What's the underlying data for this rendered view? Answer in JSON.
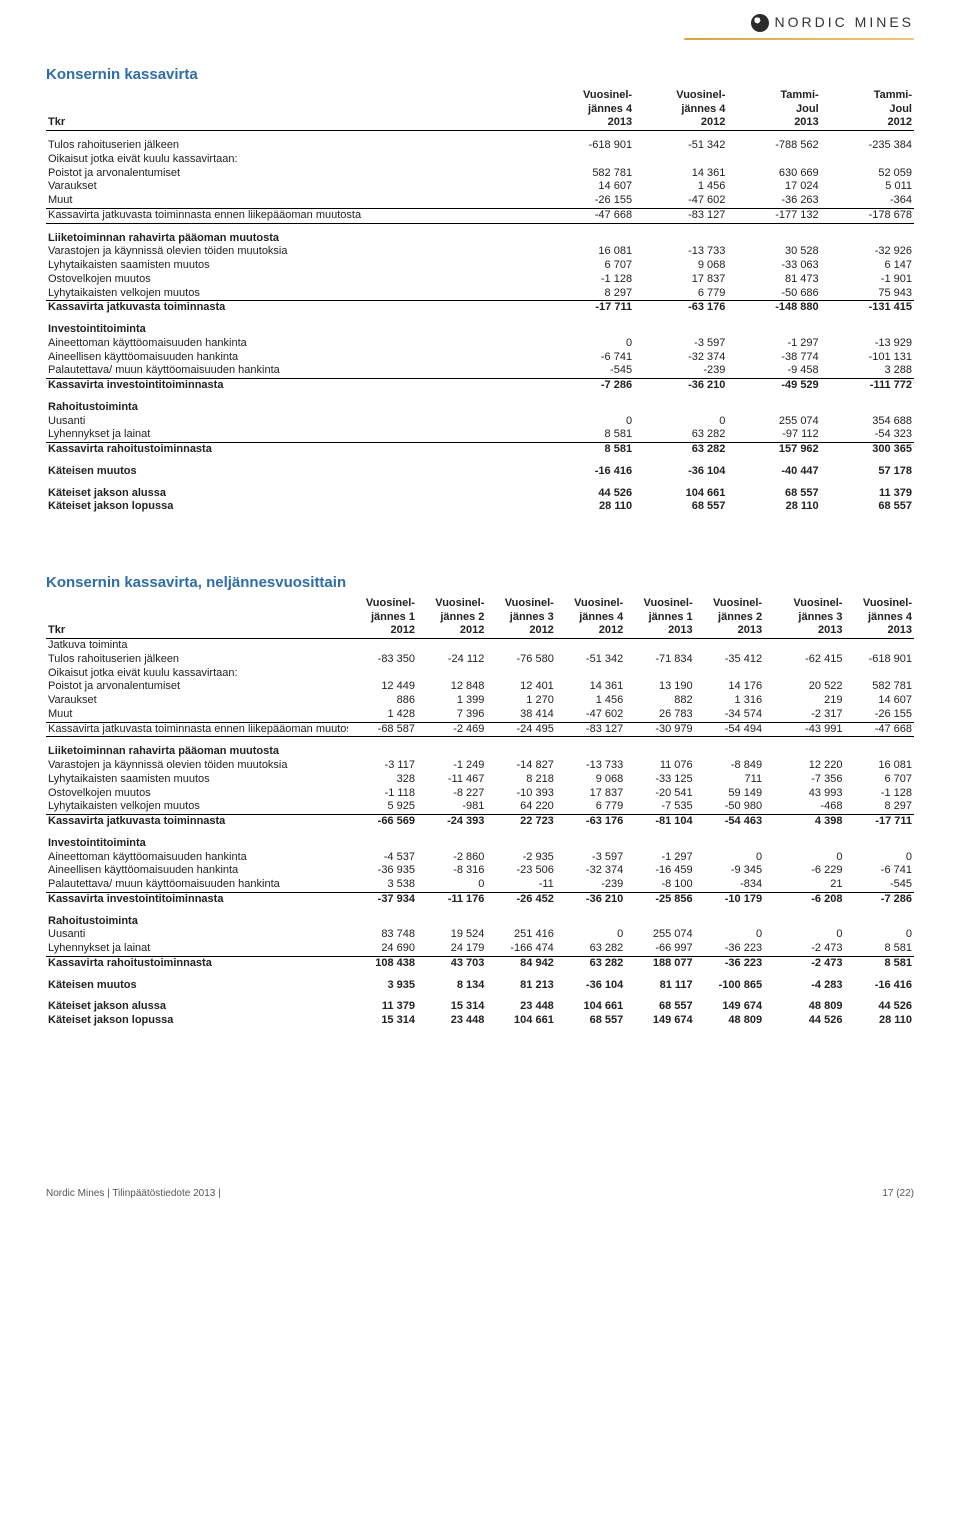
{
  "logo_text": "NORDIC MINES",
  "footer_left": "Nordic Mines | Tilinpäätöstiedote 2013 |",
  "footer_right": "17 (22)",
  "t1": {
    "title": "Konsernin kassavirta",
    "head": {
      "r0": [
        "",
        "Vuosinel-",
        "Vuosinel-",
        "Tammi-",
        "Tammi-"
      ],
      "r1": [
        "",
        "jännes 4",
        "jännes 4",
        "Joul",
        "Joul"
      ],
      "r2": [
        "Tkr",
        "2013",
        "2012",
        "2013",
        "2012"
      ]
    },
    "rows": [
      {
        "l": "Tulos rahoituserien jälkeen",
        "v": [
          "-618 901",
          "-51 342",
          "-788 562",
          "-235 384"
        ]
      },
      {
        "l": "Oikaisut jotka eivät kuulu kassavirtaan:",
        "v": [
          "",
          "",
          "",
          ""
        ]
      },
      {
        "l": "Poistot ja arvonalentumiset",
        "v": [
          "582 781",
          "14 361",
          "630 669",
          "52 059"
        ]
      },
      {
        "l": "Varaukset",
        "v": [
          "14 607",
          "1 456",
          "17 024",
          "5 011"
        ]
      },
      {
        "l": "Muut",
        "v": [
          "-26 155",
          "-47 602",
          "-36 263",
          "-364"
        ]
      }
    ],
    "cfo_before": {
      "l": "Kassavirta jatkuvasta toiminnasta ennen liikepääoman muutosta",
      "v": [
        "-47 668",
        "-83 127",
        "-177 132",
        "-178 678"
      ]
    },
    "sect1": "Liiketoiminnan rahavirta pääoman muutosta",
    "wc": [
      {
        "l": "Varastojen ja käynnissä olevien töiden muutoksia",
        "v": [
          "16 081",
          "-13 733",
          "30 528",
          "-32 926"
        ]
      },
      {
        "l": "Lyhytaikaisten saamisten muutos",
        "v": [
          "6 707",
          "9 068",
          "-33 063",
          "6 147"
        ]
      },
      {
        "l": "Ostovelkojen muutos",
        "v": [
          "-1 128",
          "17 837",
          "81 473",
          "-1 901"
        ]
      },
      {
        "l": "Lyhytaikaisten velkojen muutos",
        "v": [
          "8 297",
          "6 779",
          "-50 686",
          "75 943"
        ]
      }
    ],
    "cfo": {
      "l": "Kassavirta jatkuvasta toiminnasta",
      "v": [
        "-17 711",
        "-63 176",
        "-148 880",
        "-131 415"
      ]
    },
    "sect2": "Investointitoiminta",
    "inv": [
      {
        "l": "Aineettoman käyttöomaisuuden hankinta",
        "v": [
          "0",
          "-3 597",
          "-1 297",
          "-13 929"
        ]
      },
      {
        "l": "Aineellisen käyttöomaisuuden hankinta",
        "v": [
          "-6 741",
          "-32 374",
          "-38 774",
          "-101 131"
        ]
      },
      {
        "l": "Palautettava/ muun käyttöomaisuuden hankinta",
        "v": [
          "-545",
          "-239",
          "-9 458",
          "3 288"
        ]
      }
    ],
    "cfi": {
      "l": "Kassavirta investointitoiminnasta",
      "v": [
        "-7 286",
        "-36 210",
        "-49 529",
        "-111 772"
      ]
    },
    "sect3": "Rahoitustoiminta",
    "fin": [
      {
        "l": "Uusanti",
        "v": [
          "0",
          "0",
          "255 074",
          "354 688"
        ]
      },
      {
        "l": "Lyhennykset ja lainat",
        "v": [
          "8 581",
          "63 282",
          "-97 112",
          "-54 323"
        ]
      }
    ],
    "cff": {
      "l": "Kassavirta rahoitustoiminnasta",
      "v": [
        "8 581",
        "63 282",
        "157 962",
        "300 365"
      ]
    },
    "chg": {
      "l": "Käteisen muutos",
      "v": [
        "-16 416",
        "-36 104",
        "-40 447",
        "57 178"
      ]
    },
    "beg": {
      "l": "Käteiset jakson alussa",
      "v": [
        "44 526",
        "104 661",
        "68 557",
        "11 379"
      ]
    },
    "end": {
      "l": "Käteiset jakson lopussa",
      "v": [
        "28 110",
        "68 557",
        "28 110",
        "68 557"
      ]
    }
  },
  "t2": {
    "title": "Konsernin kassavirta, neljännesvuosittain",
    "head": {
      "r0": [
        "",
        "Vuosinel-",
        "Vuosinel-",
        "Vuosinel-",
        "Vuosinel-",
        "Vuosinel-",
        "Vuosinel-",
        "Vuosinel-",
        "Vuosinel-"
      ],
      "r1": [
        "",
        "jännes 1",
        "jännes 2",
        "jännes 3",
        "jännes 4",
        "jännes 1",
        "jännes 2",
        "jännes 3",
        "jännes 4"
      ],
      "r2": [
        "Tkr",
        "2012",
        "2012",
        "2012",
        "2012",
        "2013",
        "2013",
        "2013",
        "2013"
      ]
    },
    "cont": "Jatkuva toiminta",
    "rows": [
      {
        "l": "Tulos rahoituserien jälkeen",
        "v": [
          "-83 350",
          "-24 112",
          "-76 580",
          "-51 342",
          "-71 834",
          "-35 412",
          "-62 415",
          "-618 901"
        ]
      },
      {
        "l": "Oikaisut jotka eivät kuulu kassavirtaan:",
        "v": [
          "",
          "",
          "",
          "",
          "",
          "",
          "",
          ""
        ]
      },
      {
        "l": "Poistot ja arvonalentumiset",
        "v": [
          "12 449",
          "12 848",
          "12 401",
          "14 361",
          "13 190",
          "14 176",
          "20 522",
          "582 781"
        ]
      },
      {
        "l": "Varaukset",
        "v": [
          "886",
          "1 399",
          "1 270",
          "1 456",
          "882",
          "1 316",
          "219",
          "14 607"
        ]
      },
      {
        "l": "Muut",
        "v": [
          "1 428",
          "7 396",
          "38 414",
          "-47 602",
          "26 783",
          "-34 574",
          "-2 317",
          "-26 155"
        ]
      }
    ],
    "cfo_before": {
      "l": "Kassavirta jatkuvasta toiminnasta ennen liikepääoman muutosta",
      "v": [
        "-68 587",
        "-2 469",
        "-24 495",
        "-83 127",
        "-30 979",
        "-54 494",
        "-43 991",
        "-47 668"
      ]
    },
    "sect1": "Liiketoiminnan rahavirta pääoman muutosta",
    "wc": [
      {
        "l": "Varastojen ja käynnissä olevien töiden muutoksia",
        "v": [
          "-3 117",
          "-1 249",
          "-14 827",
          "-13 733",
          "11 076",
          "-8 849",
          "12 220",
          "16 081"
        ]
      },
      {
        "l": "Lyhytaikaisten saamisten muutos",
        "v": [
          "328",
          "-11 467",
          "8 218",
          "9 068",
          "-33 125",
          "711",
          "-7 356",
          "6 707"
        ]
      },
      {
        "l": "Ostovelkojen muutos",
        "v": [
          "-1 118",
          "-8 227",
          "-10 393",
          "17 837",
          "-20 541",
          "59 149",
          "43 993",
          "-1 128"
        ]
      },
      {
        "l": "Lyhytaikaisten velkojen muutos",
        "v": [
          "5 925",
          "-981",
          "64 220",
          "6 779",
          "-7 535",
          "-50 980",
          "-468",
          "8 297"
        ]
      }
    ],
    "cfo": {
      "l": "Kassavirta jatkuvasta toiminnasta",
      "v": [
        "-66 569",
        "-24 393",
        "22 723",
        "-63 176",
        "-81 104",
        "-54 463",
        "4 398",
        "-17 711"
      ]
    },
    "sect2": "Investointitoiminta",
    "inv": [
      {
        "l": "Aineettoman käyttöomaisuuden hankinta",
        "v": [
          "-4 537",
          "-2 860",
          "-2 935",
          "-3 597",
          "-1 297",
          "0",
          "0",
          "0"
        ]
      },
      {
        "l": "Aineellisen käyttöomaisuuden hankinta",
        "v": [
          "-36 935",
          "-8 316",
          "-23 506",
          "-32 374",
          "-16 459",
          "-9 345",
          "-6 229",
          "-6 741"
        ]
      },
      {
        "l": "Palautettava/ muun käyttöomaisuuden hankinta",
        "v": [
          "3 538",
          "0",
          "-11",
          "-239",
          "-8 100",
          "-834",
          "21",
          "-545"
        ]
      }
    ],
    "cfi": {
      "l": "Kassavirta investointitoiminnasta",
      "v": [
        "-37 934",
        "-11 176",
        "-26 452",
        "-36 210",
        "-25 856",
        "-10 179",
        "-6 208",
        "-7 286"
      ]
    },
    "sect3": "Rahoitustoiminta",
    "fin": [
      {
        "l": "Uusanti",
        "v": [
          "83 748",
          "19 524",
          "251 416",
          "0",
          "255 074",
          "0",
          "0",
          "0"
        ]
      },
      {
        "l": "Lyhennykset ja lainat",
        "v": [
          "24 690",
          "24 179",
          "-166 474",
          "63 282",
          "-66 997",
          "-36 223",
          "-2 473",
          "8 581"
        ]
      }
    ],
    "cff": {
      "l": "Kassavirta rahoitustoiminnasta",
      "v": [
        "108 438",
        "43 703",
        "84 942",
        "63 282",
        "188 077",
        "-36 223",
        "-2 473",
        "8 581"
      ]
    },
    "chg": {
      "l": "Käteisen muutos",
      "v": [
        "3 935",
        "8 134",
        "81 213",
        "-36 104",
        "81 117",
        "-100 865",
        "-4 283",
        "-16 416"
      ]
    },
    "beg": {
      "l": "Käteiset jakson alussa",
      "v": [
        "11 379",
        "15 314",
        "23 448",
        "104 661",
        "68 557",
        "149 674",
        "48 809",
        "44 526"
      ]
    },
    "end": {
      "l": "Käteiset jakson lopussa",
      "v": [
        "15 314",
        "23 448",
        "104 661",
        "68 557",
        "149 674",
        "48 809",
        "44 526",
        "28 110"
      ]
    }
  }
}
